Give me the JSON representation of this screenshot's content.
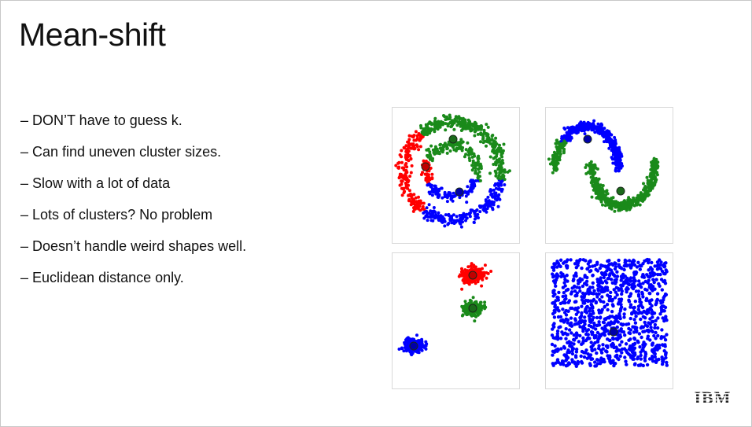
{
  "slide": {
    "title": "Mean-shift",
    "bullets": [
      "– DON’T have to guess k.",
      "– Can find uneven cluster sizes.",
      "– Slow with a lot of data",
      "– Lots of clusters? No problem",
      "– Doesn’t handle weird shapes well.",
      "– Euclidean distance only."
    ],
    "logo": "IBM"
  },
  "colors": {
    "red": "#ff0000",
    "green": "#1a8a1a",
    "blue": "#0000ff",
    "center": "#1f3d1f"
  }
}
